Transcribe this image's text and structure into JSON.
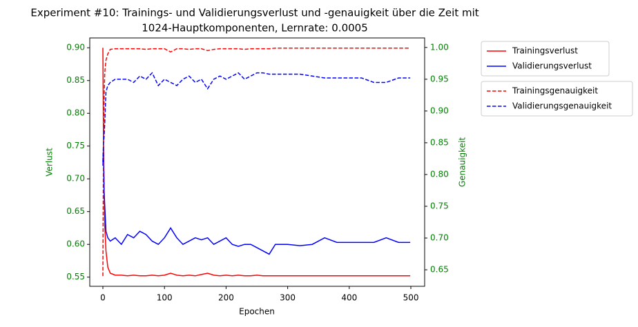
{
  "chart_data": {
    "type": "line",
    "title": [
      "Experiment #10: Trainings- und Validierungsverlust und -genauigkeit über die Zeit mit",
      "1024-Hauptkomponenten, Lernrate: 0.0005"
    ],
    "xlabel": "Epochen",
    "ylabel": "Verlust",
    "y2label": "Genauigkeit",
    "x": [
      0,
      1,
      2,
      3,
      5,
      8,
      12,
      20,
      30,
      40,
      50,
      60,
      70,
      80,
      90,
      100,
      110,
      120,
      130,
      140,
      150,
      160,
      170,
      180,
      190,
      200,
      210,
      220,
      230,
      240,
      250,
      260,
      270,
      280,
      290,
      300,
      320,
      340,
      360,
      380,
      400,
      420,
      440,
      460,
      480,
      499
    ],
    "series": [
      {
        "name": "Trainingsverlust",
        "color": "#ff0000",
        "linestyle": "solid",
        "axis": "y",
        "values": [
          0.9,
          0.75,
          0.68,
          0.63,
          0.59,
          0.565,
          0.556,
          0.553,
          0.553,
          0.552,
          0.553,
          0.552,
          0.552,
          0.553,
          0.552,
          0.553,
          0.556,
          0.553,
          0.552,
          0.553,
          0.552,
          0.554,
          0.556,
          0.553,
          0.552,
          0.553,
          0.552,
          0.553,
          0.552,
          0.552,
          0.553,
          0.552,
          0.552,
          0.552,
          0.552,
          0.552,
          0.552,
          0.552,
          0.552,
          0.552,
          0.552,
          0.552,
          0.552,
          0.552,
          0.552,
          0.552
        ]
      },
      {
        "name": "Validierungsverlust",
        "color": "#0000ff",
        "linestyle": "solid",
        "axis": "y",
        "values": [
          0.72,
          0.75,
          0.68,
          0.66,
          0.62,
          0.61,
          0.605,
          0.61,
          0.6,
          0.615,
          0.61,
          0.62,
          0.615,
          0.605,
          0.6,
          0.61,
          0.625,
          0.61,
          0.6,
          0.605,
          0.61,
          0.607,
          0.61,
          0.6,
          0.605,
          0.61,
          0.6,
          0.597,
          0.6,
          0.6,
          0.595,
          0.59,
          0.585,
          0.6,
          0.6,
          0.6,
          0.598,
          0.6,
          0.61,
          0.603,
          0.603,
          0.603,
          0.603,
          0.61,
          0.603,
          0.603
        ]
      },
      {
        "name": "Trainingsgenauigkeit",
        "color": "#ff0000",
        "linestyle": "dashed",
        "axis": "y2",
        "values": [
          0.64,
          0.85,
          0.92,
          0.96,
          0.98,
          0.99,
          0.997,
          0.998,
          0.998,
          0.998,
          0.998,
          0.998,
          0.997,
          0.998,
          0.998,
          0.998,
          0.993,
          0.998,
          0.998,
          0.997,
          0.998,
          0.998,
          0.995,
          0.997,
          0.998,
          0.998,
          0.998,
          0.998,
          0.997,
          0.998,
          0.998,
          0.998,
          0.998,
          0.999,
          0.999,
          0.999,
          0.999,
          0.999,
          0.999,
          0.999,
          0.999,
          0.999,
          0.999,
          0.999,
          0.999,
          0.999
        ]
      },
      {
        "name": "Validierungsgenauigkeit",
        "color": "#0000ff",
        "linestyle": "dashed",
        "axis": "y2",
        "values": [
          0.82,
          0.85,
          0.86,
          0.88,
          0.93,
          0.94,
          0.945,
          0.95,
          0.95,
          0.95,
          0.945,
          0.955,
          0.95,
          0.96,
          0.94,
          0.95,
          0.945,
          0.94,
          0.95,
          0.955,
          0.945,
          0.95,
          0.935,
          0.95,
          0.955,
          0.95,
          0.955,
          0.96,
          0.95,
          0.955,
          0.96,
          0.96,
          0.958,
          0.958,
          0.958,
          0.958,
          0.958,
          0.955,
          0.952,
          0.952,
          0.952,
          0.952,
          0.945,
          0.945,
          0.952,
          0.952
        ]
      }
    ],
    "xlim": [
      -21.3,
      522.4
    ],
    "xticks": [
      0,
      100,
      200,
      300,
      400,
      500
    ],
    "ylim": [
      0.536,
      0.915
    ],
    "yticks": [
      0.55,
      {
        "value": 0.6,
        "label": "0.60"
      },
      0.65,
      {
        "value": 0.7,
        "label": "0.70"
      },
      0.75,
      {
        "value": 0.8,
        "label": "0.80"
      },
      0.85,
      {
        "value": 0.9,
        "label": "0.90"
      }
    ],
    "y2lim": [
      0.624,
      1.015
    ],
    "y2ticks": [
      0.65,
      {
        "value": 0.7,
        "label": "0.70"
      },
      0.75,
      {
        "value": 0.8,
        "label": "0.80"
      },
      0.85,
      {
        "value": 0.9,
        "label": "0.90"
      },
      0.95,
      {
        "value": 1.0,
        "label": "1.00"
      }
    ],
    "axis_color": "green",
    "legend": "outside right"
  }
}
